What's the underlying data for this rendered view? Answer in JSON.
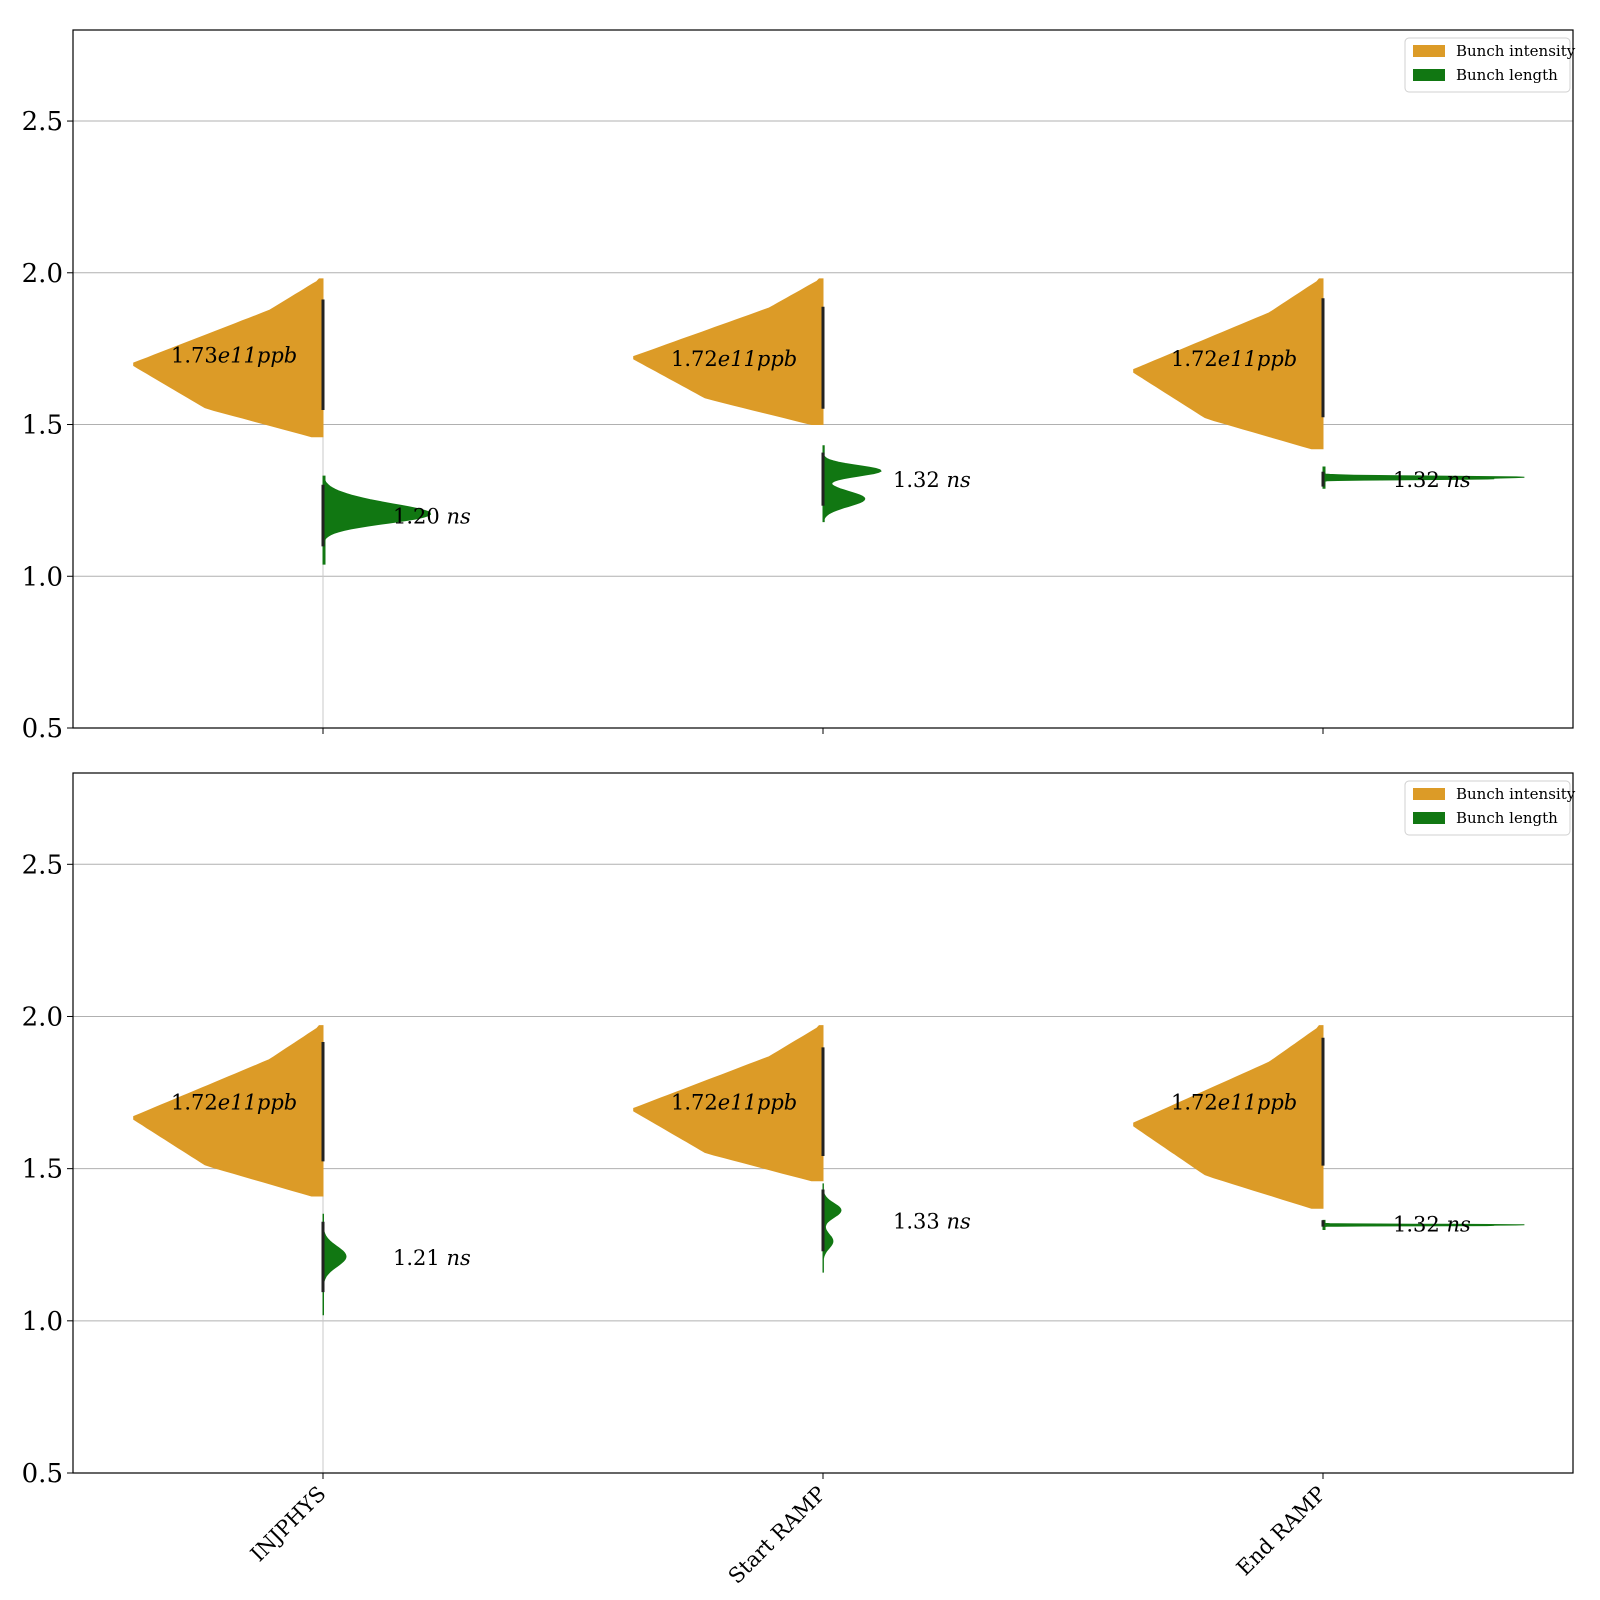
{
  "chart_data": [
    {
      "type": "violin",
      "panel": "top",
      "categories": [
        "INJPHYS",
        "Start RAMP",
        "End RAMP"
      ],
      "ylim": [
        0.5,
        2.8
      ],
      "yticks": [
        0.5,
        1.0,
        1.5,
        2.0,
        2.5
      ],
      "ytick_labels": [
        "0.5",
        "1.0",
        "1.5",
        "2.0",
        "2.5"
      ],
      "grid": true,
      "legend_position": "top-right",
      "colors": {
        "Bunch intensity": "#dc9b27",
        "Bunch length": "#117712"
      },
      "series": [
        {
          "name": "Bunch intensity",
          "side": "left",
          "medians": [
            1.73,
            1.72,
            1.72
          ],
          "mins": [
            1.46,
            1.5,
            1.42
          ],
          "maxs": [
            1.98,
            1.98,
            1.98
          ],
          "labels": [
            {
              "value": "1.73",
              "exponent": "e11",
              "unit": "ppb"
            },
            {
              "value": "1.72",
              "exponent": "e11",
              "unit": "ppb"
            },
            {
              "value": "1.72",
              "exponent": "e11",
              "unit": "ppb"
            }
          ]
        },
        {
          "name": "Bunch length",
          "side": "right",
          "medians": [
            1.2,
            1.32,
            1.32
          ],
          "mins": [
            1.04,
            1.18,
            1.29
          ],
          "maxs": [
            1.33,
            1.43,
            1.36
          ],
          "labels": [
            {
              "value": "1.20",
              "unit": "ns"
            },
            {
              "value": "1.32",
              "unit": "ns"
            },
            {
              "value": "1.32",
              "unit": "ns"
            }
          ]
        }
      ]
    },
    {
      "type": "violin",
      "panel": "bottom",
      "categories": [
        "INJPHYS",
        "Start RAMP",
        "End RAMP"
      ],
      "ylim": [
        0.5,
        2.8
      ],
      "yticks": [
        0.5,
        1.0,
        1.5,
        2.0,
        2.5
      ],
      "ytick_labels": [
        "0.5",
        "1.0",
        "1.5",
        "2.0",
        "2.5"
      ],
      "grid": true,
      "legend_position": "top-right",
      "colors": {
        "Bunch intensity": "#dc9b27",
        "Bunch length": "#117712"
      },
      "series": [
        {
          "name": "Bunch intensity",
          "side": "left",
          "medians": [
            1.72,
            1.72,
            1.72
          ],
          "mins": [
            1.41,
            1.46,
            1.37
          ],
          "maxs": [
            1.97,
            1.97,
            1.97
          ],
          "labels": [
            {
              "value": "1.72",
              "exponent": "e11",
              "unit": "ppb"
            },
            {
              "value": "1.72",
              "exponent": "e11",
              "unit": "ppb"
            },
            {
              "value": "1.72",
              "exponent": "e11",
              "unit": "ppb"
            }
          ]
        },
        {
          "name": "Bunch length",
          "side": "right",
          "medians": [
            1.21,
            1.33,
            1.32
          ],
          "mins": [
            1.02,
            1.16,
            1.3
          ],
          "maxs": [
            1.35,
            1.45,
            1.33
          ],
          "labels": [
            {
              "value": "1.21",
              "unit": "ns"
            },
            {
              "value": "1.33",
              "unit": "ns"
            },
            {
              "value": "1.32",
              "unit": "ns"
            }
          ]
        }
      ]
    }
  ]
}
